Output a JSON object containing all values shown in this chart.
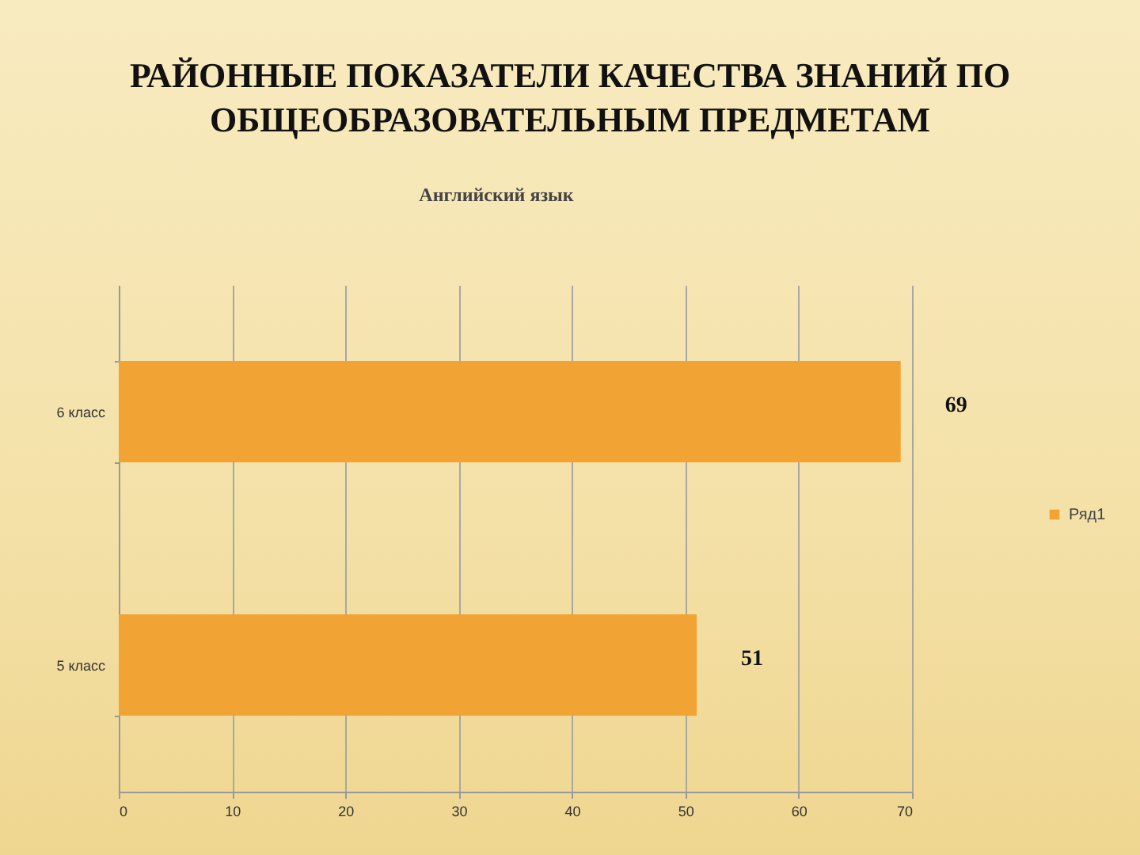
{
  "chart_data": {
    "type": "bar",
    "orientation": "horizontal",
    "title": "РАЙОННЫЕ ПОКАЗАТЕЛИ КАЧЕСТВА ЗНАНИЙ ПО ОБЩЕОБРАЗОВАТЕЛЬНЫМ ПРЕДМЕТАМ",
    "subtitle": "Английский язык",
    "categories": [
      "6 класс",
      "5 класс"
    ],
    "series": [
      {
        "name": "Ряд1",
        "color": "#f1a433",
        "values": [
          69,
          51
        ]
      }
    ],
    "xlim": [
      0,
      70
    ],
    "xticks": [
      0,
      10,
      20,
      30,
      40,
      50,
      60,
      70
    ],
    "grid": "x",
    "legend": "right",
    "data_labels": true
  }
}
